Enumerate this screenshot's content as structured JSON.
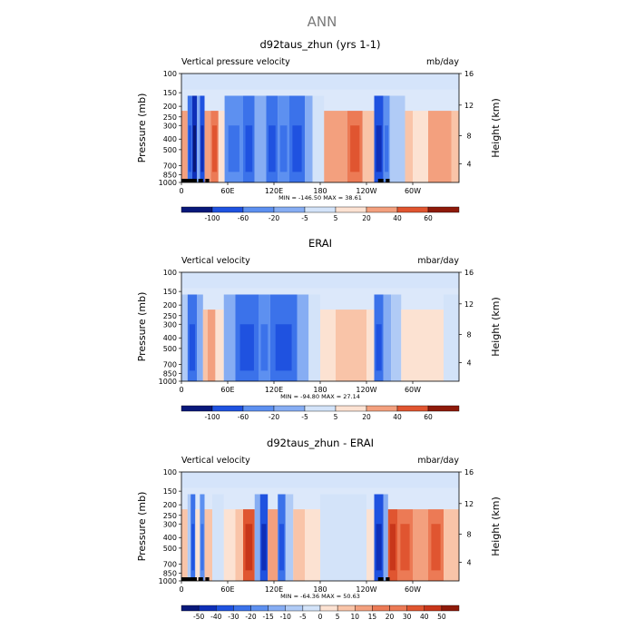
{
  "figure": {
    "title": "ANN"
  },
  "colors": {
    "blues": [
      "#08187a",
      "#0e2fb8",
      "#1f52e0",
      "#3b72ea",
      "#5d90f0",
      "#86adf3",
      "#b0cbf6",
      "#d3e3f9"
    ],
    "reds": [
      "#fce2d2",
      "#f9c4a8",
      "#f3a07e",
      "#ec7a55",
      "#e05530",
      "#c8361a",
      "#8e1a0a"
    ],
    "ground": "#000000"
  },
  "chart_data": [
    {
      "type": "heatmap",
      "title": "d92taus_zhun (yrs 1-1)",
      "left_label": "Vertical pressure velocity",
      "units": "mb/day",
      "ylabel": "Pressure (mb)",
      "y2label": "Height (km)",
      "yticks": [
        "100",
        "150",
        "200",
        "250",
        "300",
        "400",
        "500",
        "700",
        "850",
        "1000"
      ],
      "y2ticks": [
        "16",
        "12",
        "8",
        "4"
      ],
      "xticks": [
        "0",
        "60E",
        "120E",
        "180",
        "120W",
        "60W"
      ],
      "stats": "MIN = -146.50   MAX =  38.61",
      "colorbar": [
        "-100",
        "-60",
        "-20",
        "-5",
        "5",
        "20",
        "40",
        "60"
      ],
      "regions": [
        {
          "lon": [
            0,
            8
          ],
          "level": 3
        },
        {
          "lon": [
            8,
            14
          ],
          "level": -5
        },
        {
          "lon": [
            14,
            20
          ],
          "level": -7
        },
        {
          "lon": [
            20,
            24
          ],
          "level": -3
        },
        {
          "lon": [
            24,
            30
          ],
          "level": -6
        },
        {
          "lon": [
            30,
            38
          ],
          "level": 3
        },
        {
          "lon": [
            38,
            48
          ],
          "level": 4
        },
        {
          "lon": [
            48,
            56
          ],
          "level": 1
        },
        {
          "lon": [
            56,
            80
          ],
          "level": -4
        },
        {
          "lon": [
            80,
            95
          ],
          "level": -5
        },
        {
          "lon": [
            95,
            110
          ],
          "level": -3
        },
        {
          "lon": [
            110,
            125
          ],
          "level": -5
        },
        {
          "lon": [
            125,
            140
          ],
          "level": -4
        },
        {
          "lon": [
            140,
            160
          ],
          "level": -5
        },
        {
          "lon": [
            160,
            170
          ],
          "level": -3
        },
        {
          "lon": [
            170,
            185
          ],
          "level": -1
        },
        {
          "lon": [
            185,
            215
          ],
          "level": 3
        },
        {
          "lon": [
            215,
            235
          ],
          "level": 4
        },
        {
          "lon": [
            235,
            250
          ],
          "level": 2
        },
        {
          "lon": [
            250,
            262
          ],
          "level": -6
        },
        {
          "lon": [
            262,
            270
          ],
          "level": -4
        },
        {
          "lon": [
            270,
            290
          ],
          "level": -2
        },
        {
          "lon": [
            290,
            300
          ],
          "level": 2
        },
        {
          "lon": [
            300,
            320
          ],
          "level": 1
        },
        {
          "lon": [
            320,
            350
          ],
          "level": 3
        },
        {
          "lon": [
            350,
            360
          ],
          "level": 2
        }
      ],
      "ground": [
        [
          0,
          20
        ],
        [
          22,
          28
        ],
        [
          31,
          36
        ],
        [
          255,
          262
        ],
        [
          265,
          270
        ]
      ]
    },
    {
      "type": "heatmap",
      "title": "ERAI",
      "left_label": "Vertical velocity",
      "units": "mbar/day",
      "ylabel": "Pressure (mb)",
      "y2label": "Height (km)",
      "yticks": [
        "100",
        "150",
        "200",
        "250",
        "300",
        "400",
        "500",
        "700",
        "850",
        "1000"
      ],
      "y2ticks": [
        "16",
        "12",
        "8",
        "4"
      ],
      "xticks": [
        "0",
        "60E",
        "120E",
        "180",
        "120W",
        "60W"
      ],
      "stats": "MIN = -94.80   MAX =  27.14",
      "colorbar": [
        "-100",
        "-60",
        "-20",
        "-5",
        "5",
        "20",
        "40",
        "60"
      ],
      "regions": [
        {
          "lon": [
            0,
            8
          ],
          "level": -2
        },
        {
          "lon": [
            8,
            20
          ],
          "level": -5
        },
        {
          "lon": [
            20,
            28
          ],
          "level": -3
        },
        {
          "lon": [
            28,
            34
          ],
          "level": 2
        },
        {
          "lon": [
            34,
            44
          ],
          "level": 3
        },
        {
          "lon": [
            44,
            55
          ],
          "level": 1
        },
        {
          "lon": [
            55,
            70
          ],
          "level": -3
        },
        {
          "lon": [
            70,
            100
          ],
          "level": -5
        },
        {
          "lon": [
            100,
            115
          ],
          "level": -4
        },
        {
          "lon": [
            115,
            150
          ],
          "level": -5
        },
        {
          "lon": [
            150,
            165
          ],
          "level": -3
        },
        {
          "lon": [
            165,
            180
          ],
          "level": -1
        },
        {
          "lon": [
            180,
            200
          ],
          "level": 1
        },
        {
          "lon": [
            200,
            240
          ],
          "level": 2
        },
        {
          "lon": [
            240,
            250
          ],
          "level": 1
        },
        {
          "lon": [
            250,
            262
          ],
          "level": -5
        },
        {
          "lon": [
            262,
            272
          ],
          "level": -3
        },
        {
          "lon": [
            272,
            285
          ],
          "level": -2
        },
        {
          "lon": [
            285,
            300
          ],
          "level": 1
        },
        {
          "lon": [
            300,
            340
          ],
          "level": 1
        },
        {
          "lon": [
            340,
            360
          ],
          "level": -1
        }
      ],
      "ground": []
    },
    {
      "type": "heatmap",
      "title": "d92taus_zhun - ERAI",
      "left_label": "Vertical velocity",
      "units": "mbar/day",
      "ylabel": "Pressure (mb)",
      "y2label": "Height (km)",
      "yticks": [
        "100",
        "150",
        "200",
        "250",
        "300",
        "400",
        "500",
        "700",
        "850",
        "1000"
      ],
      "y2ticks": [
        "16",
        "12",
        "8",
        "4"
      ],
      "xticks": [
        "0",
        "60E",
        "120E",
        "180",
        "120W",
        "60W"
      ],
      "stats": "MIN = -64.36   MAX =  50.63",
      "colorbar": [
        "-50",
        "-40",
        "-30",
        "-20",
        "-15",
        "-10",
        "-5",
        "0",
        "5",
        "10",
        "15",
        "20",
        "30",
        "40",
        "50"
      ],
      "regions": [
        {
          "lon": [
            0,
            8
          ],
          "level": 2
        },
        {
          "lon": [
            8,
            12
          ],
          "level": -2
        },
        {
          "lon": [
            12,
            18
          ],
          "level": -5
        },
        {
          "lon": [
            18,
            24
          ],
          "level": 1
        },
        {
          "lon": [
            24,
            30
          ],
          "level": -4
        },
        {
          "lon": [
            30,
            40
          ],
          "level": 2
        },
        {
          "lon": [
            40,
            55
          ],
          "level": -1
        },
        {
          "lon": [
            55,
            70
          ],
          "level": 1
        },
        {
          "lon": [
            70,
            80
          ],
          "level": 2
        },
        {
          "lon": [
            80,
            95
          ],
          "level": 5
        },
        {
          "lon": [
            95,
            102
          ],
          "level": -3
        },
        {
          "lon": [
            102,
            112
          ],
          "level": -6
        },
        {
          "lon": [
            112,
            125
          ],
          "level": 3
        },
        {
          "lon": [
            125,
            135
          ],
          "level": -5
        },
        {
          "lon": [
            135,
            145
          ],
          "level": -2
        },
        {
          "lon": [
            145,
            160
          ],
          "level": 2
        },
        {
          "lon": [
            160,
            180
          ],
          "level": 1
        },
        {
          "lon": [
            180,
            240
          ],
          "level": -1
        },
        {
          "lon": [
            240,
            250
          ],
          "level": 1
        },
        {
          "lon": [
            250,
            262
          ],
          "level": -6
        },
        {
          "lon": [
            262,
            268
          ],
          "level": -3
        },
        {
          "lon": [
            268,
            280
          ],
          "level": 5
        },
        {
          "lon": [
            280,
            300
          ],
          "level": 4
        },
        {
          "lon": [
            300,
            320
          ],
          "level": 3
        },
        {
          "lon": [
            320,
            340
          ],
          "level": 4
        },
        {
          "lon": [
            340,
            360
          ],
          "level": 2
        }
      ],
      "ground": [
        [
          0,
          20
        ],
        [
          22,
          28
        ],
        [
          31,
          36
        ],
        [
          255,
          262
        ],
        [
          265,
          270
        ]
      ]
    }
  ]
}
